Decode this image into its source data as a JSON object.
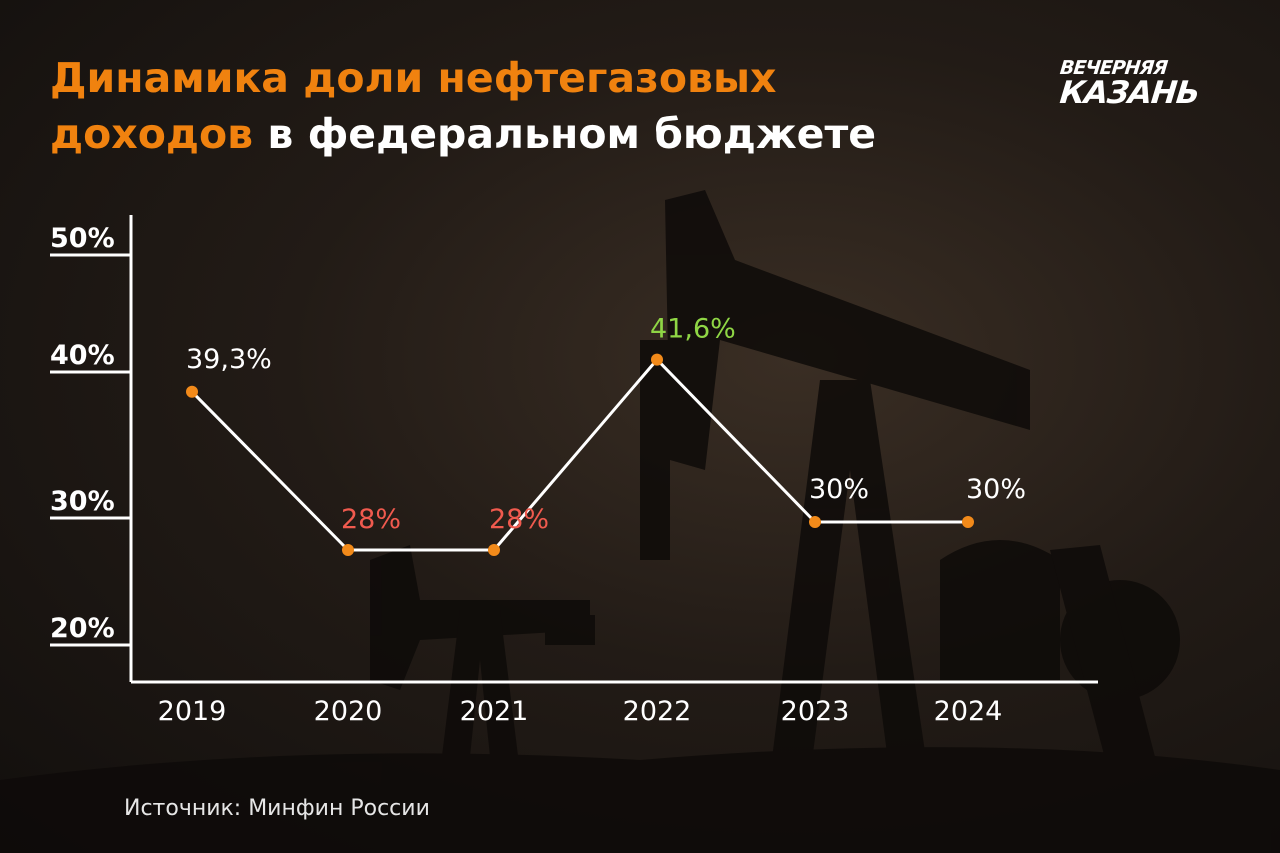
{
  "title": {
    "accent_line1": "Динамика доли нефтегазовых",
    "accent_line2_start": "доходов",
    "rest_line2": " в федеральном бюджете"
  },
  "logo": {
    "line1": "ВЕЧЕРНЯЯ",
    "line2": "КАЗАНЬ"
  },
  "source": "Источник: Минфин России",
  "colors": {
    "accent": "#f0820f",
    "marker": "#f28a1a",
    "line": "#ffffff",
    "decline": "#f05a4e",
    "peak": "#8fd645",
    "text": "#ffffff"
  },
  "chart_data": {
    "type": "line",
    "categories": [
      "2019",
      "2020",
      "2021",
      "2022",
      "2023",
      "2024"
    ],
    "series": [
      {
        "values": [
          39.3,
          28,
          28,
          41.6,
          30,
          30
        ]
      }
    ],
    "data_labels": [
      "39,3%",
      "28%",
      "28%",
      "41,6%",
      "30%",
      "30%"
    ],
    "label_colors": [
      "#ffffff",
      "#f05a4e",
      "#f05a4e",
      "#8fd645",
      "#ffffff",
      "#ffffff"
    ],
    "y_ticks": [
      "20%",
      "30%",
      "40%",
      "50%"
    ],
    "title": "Динамика доли нефтегазовых доходов в федеральном бюджете",
    "xlabel": "",
    "ylabel": "",
    "grid": false,
    "legend": "none"
  }
}
